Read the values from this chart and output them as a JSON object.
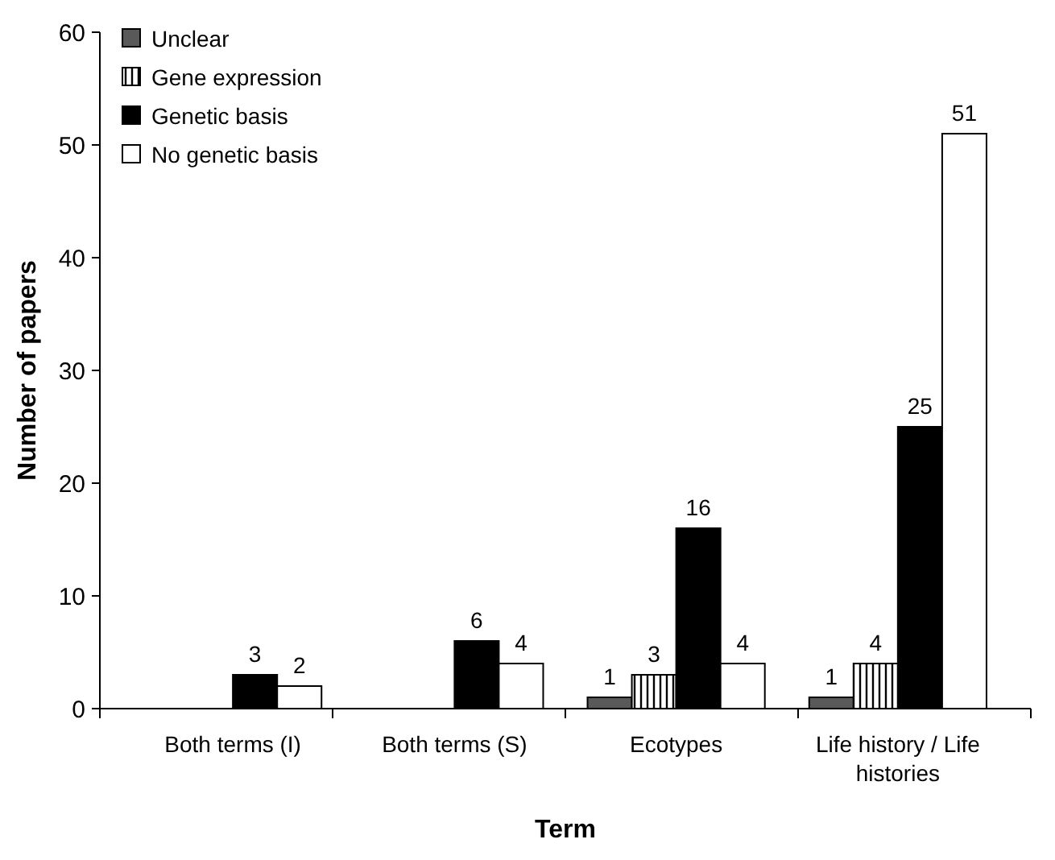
{
  "chart_data": {
    "type": "bar",
    "xlabel": "Term",
    "ylabel": "Number of papers",
    "categories": [
      "Both terms (I)",
      "Both terms (S)",
      "Ecotypes",
      "Life history / Life histories"
    ],
    "series": [
      {
        "name": "Unclear",
        "color": "#595959",
        "values": [
          null,
          null,
          1,
          1
        ]
      },
      {
        "name": "Gene expression",
        "color": "#000000",
        "values": [
          null,
          null,
          3,
          4
        ]
      },
      {
        "name": "Genetic basis",
        "color": "#000000",
        "values": [
          3,
          6,
          16,
          25
        ]
      },
      {
        "name": "No genetic basis",
        "color": "#ffffff",
        "values": [
          2,
          4,
          4,
          51
        ]
      }
    ],
    "ylim": [
      0,
      60
    ],
    "yticks": [
      0,
      10,
      20,
      30,
      40,
      50,
      60
    ],
    "grid": false,
    "legend": "top left",
    "data_labels": true
  }
}
